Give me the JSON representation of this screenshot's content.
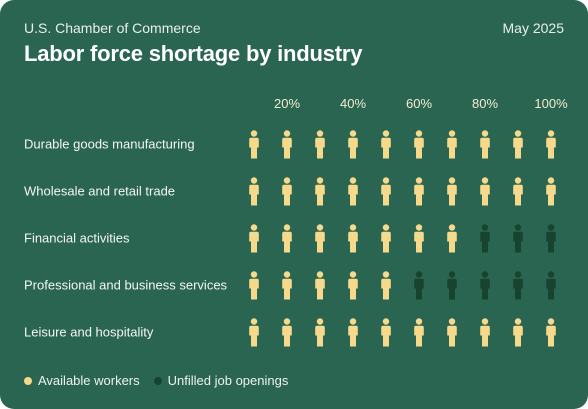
{
  "header": {
    "source": "U.S. Chamber of Commerce",
    "date": "May 2025",
    "title": "Labor force shortage by industry"
  },
  "colors": {
    "background": "#2a6552",
    "available": "#f6d98a",
    "unfilled": "#18432f"
  },
  "icons": {
    "available": "person-icon",
    "unfilled": "person-icon"
  },
  "legend": [
    {
      "label": "Available workers",
      "color": "#f6d98a"
    },
    {
      "label": "Unfilled job openings",
      "color": "#18432f"
    }
  ],
  "chart_data": {
    "type": "pictograph",
    "units_per_category": 10,
    "x_ticks": [
      "20%",
      "40%",
      "60%",
      "80%",
      "100%"
    ],
    "categories": [
      "Durable goods manufacturing",
      "Wholesale and retail trade",
      "Financial activities",
      "Professional and business services",
      "Leisure and hospitality"
    ],
    "series": [
      {
        "name": "Available workers",
        "values": [
          10,
          10,
          7,
          5,
          10
        ]
      },
      {
        "name": "Unfilled job openings",
        "values": [
          0,
          0,
          3,
          5,
          0
        ]
      }
    ],
    "legend_position": "bottom-left"
  }
}
